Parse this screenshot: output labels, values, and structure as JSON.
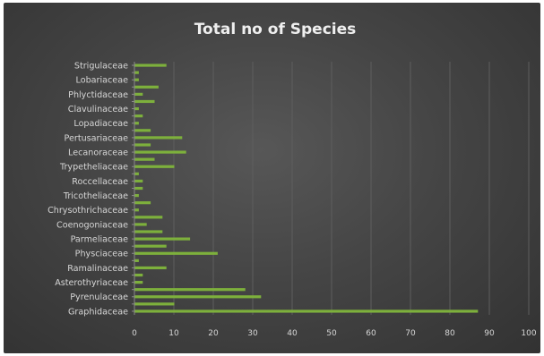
{
  "chart_data": {
    "type": "bar",
    "orientation": "horizontal",
    "title": "Total no of Species",
    "xlabel": "",
    "ylabel": "",
    "xlim": [
      0,
      100
    ],
    "xticks": [
      0,
      10,
      20,
      30,
      40,
      50,
      60,
      70,
      80,
      90,
      100
    ],
    "grid": "vertical",
    "legend": "none",
    "bar_color": "#7db03c",
    "background": "#474747",
    "bars": [
      {
        "label": "Strigulaceae",
        "value": 8
      },
      {
        "label": "",
        "value": 1
      },
      {
        "label": "Lobariaceae",
        "value": 1
      },
      {
        "label": "",
        "value": 6
      },
      {
        "label": "Phlyctidaceae",
        "value": 2
      },
      {
        "label": "",
        "value": 5
      },
      {
        "label": "Clavulinaceae",
        "value": 1
      },
      {
        "label": "",
        "value": 2
      },
      {
        "label": "Lopadiaceae",
        "value": 1
      },
      {
        "label": "",
        "value": 4
      },
      {
        "label": "Pertusariaceae",
        "value": 12
      },
      {
        "label": "",
        "value": 4
      },
      {
        "label": "Lecanoraceae",
        "value": 13
      },
      {
        "label": "",
        "value": 5
      },
      {
        "label": "Trypetheliaceae",
        "value": 10
      },
      {
        "label": "",
        "value": 1
      },
      {
        "label": "Roccellaceae",
        "value": 2
      },
      {
        "label": "",
        "value": 2
      },
      {
        "label": "Tricotheliaceae",
        "value": 1
      },
      {
        "label": "",
        "value": 4
      },
      {
        "label": "Chrysothrichaceae",
        "value": 1
      },
      {
        "label": "",
        "value": 7
      },
      {
        "label": "Coenogoniaceae",
        "value": 3
      },
      {
        "label": "",
        "value": 7
      },
      {
        "label": "Parmeliaceae",
        "value": 14
      },
      {
        "label": "",
        "value": 8
      },
      {
        "label": "Physciaceae",
        "value": 21
      },
      {
        "label": "",
        "value": 1
      },
      {
        "label": "Ramalinaceae",
        "value": 8
      },
      {
        "label": "",
        "value": 2
      },
      {
        "label": "Asterothyriaceae",
        "value": 2
      },
      {
        "label": "",
        "value": 28
      },
      {
        "label": "Pyrenulaceae",
        "value": 32
      },
      {
        "label": "",
        "value": 10
      },
      {
        "label": "Graphidaceae",
        "value": 87
      }
    ]
  }
}
